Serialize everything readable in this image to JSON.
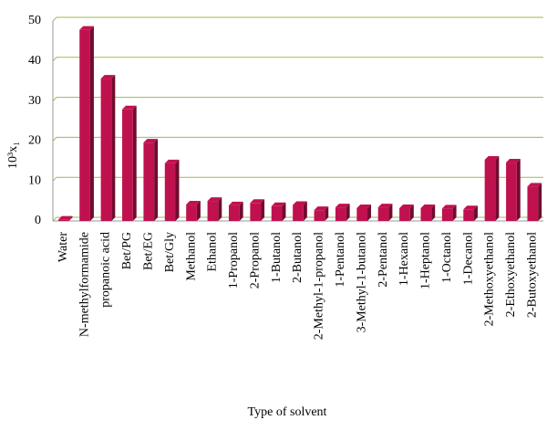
{
  "chart_data": {
    "type": "bar",
    "x_label": "Type of solvent",
    "y_label": "10³x₁",
    "categories": [
      "Water",
      "N-methylformamide",
      "propanoic acid",
      "Bet/PG",
      "Bet/EG",
      "Bet/Gly",
      "Methanol",
      "Ethanol",
      "1-Propanol",
      "2-Propanol",
      "1-Butanol",
      "2-Butanol",
      "2-Methyl-1-propanol",
      "1-Pentanol",
      "3-Methyl-1-butanol",
      "2-Pentanol",
      "1-Hexanol",
      "1-Heptanol",
      "1-Octanol",
      "1-Decanol",
      "2-Methoxyethanol",
      "2-Ethoxyethanol",
      "2-Butoxyethanol"
    ],
    "values": [
      0.3,
      47.8,
      35.6,
      27.9,
      19.6,
      14.4,
      4.1,
      5.0,
      3.9,
      4.5,
      3.7,
      4.0,
      2.7,
      3.4,
      3.2,
      3.4,
      3.2,
      3.2,
      3.1,
      2.9,
      15.3,
      14.6,
      8.6
    ],
    "color": "#c0114f",
    "ylim": [
      0,
      50
    ],
    "yticks": [
      0,
      10,
      20,
      30,
      40,
      50
    ],
    "grid": true,
    "grid_color": "#9bbb59"
  }
}
